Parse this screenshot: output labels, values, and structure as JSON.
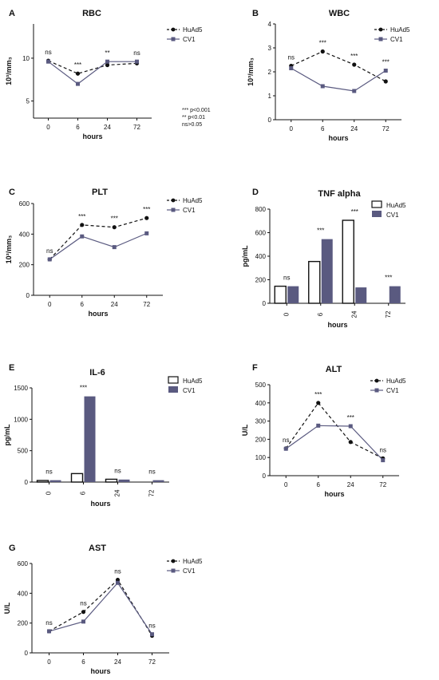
{
  "colors": {
    "huad5": "#111111",
    "cv1": "#5a5a80"
  },
  "sig_notes": [
    "*** p<0.001",
    "**  p<0.01",
    "ns>0.05"
  ],
  "chart_data": [
    {
      "panel": "A",
      "title": "RBC",
      "type": "line",
      "xlabel": "hours",
      "ylabel": "10³/mm₃",
      "categories": [
        "0",
        "6",
        "24",
        "72"
      ],
      "ylim": [
        3,
        14
      ],
      "yticks": [
        5,
        10
      ],
      "series": [
        {
          "name": "HuAd5",
          "values": [
            9.7,
            8.2,
            9.2,
            9.4
          ]
        },
        {
          "name": "CV1",
          "values": [
            9.6,
            7.0,
            9.6,
            9.6
          ]
        }
      ],
      "annotations": [
        "ns",
        "***",
        "**",
        "ns"
      ]
    },
    {
      "panel": "B",
      "title": "WBC",
      "type": "line",
      "xlabel": "hours",
      "ylabel": "10³/mm₃",
      "categories": [
        "0",
        "6",
        "24",
        "72"
      ],
      "ylim": [
        0,
        4
      ],
      "yticks": [
        0,
        1,
        2,
        3,
        4
      ],
      "series": [
        {
          "name": "HuAd5",
          "values": [
            2.25,
            2.85,
            2.3,
            1.6
          ]
        },
        {
          "name": "CV1",
          "values": [
            2.15,
            1.4,
            1.2,
            2.05
          ]
        }
      ],
      "annotations": [
        "ns",
        "***",
        "***",
        "***"
      ]
    },
    {
      "panel": "C",
      "title": "PLT",
      "type": "line",
      "xlabel": "hours",
      "ylabel": "10³/mm₃",
      "categories": [
        "0",
        "6",
        "24",
        "72"
      ],
      "ylim": [
        0,
        600
      ],
      "yticks": [
        0,
        200,
        400,
        600
      ],
      "series": [
        {
          "name": "HuAd5",
          "values": [
            235,
            460,
            445,
            505
          ]
        },
        {
          "name": "CV1",
          "values": [
            235,
            385,
            315,
            405
          ]
        }
      ],
      "annotations": [
        "ns",
        "***",
        "***",
        "***"
      ]
    },
    {
      "panel": "D",
      "title": "TNF alpha",
      "type": "bar",
      "xlabel": "hours",
      "ylabel": "pg/mL",
      "categories": [
        "0",
        "6",
        "24",
        "72"
      ],
      "ylim": [
        0,
        800
      ],
      "yticks": [
        0,
        200,
        400,
        600,
        800
      ],
      "series": [
        {
          "name": "HuAd5",
          "values": [
            145,
            355,
            705,
            0
          ]
        },
        {
          "name": "CV1",
          "values": [
            145,
            545,
            135,
            145
          ]
        }
      ],
      "annotations": [
        "ns",
        "***",
        "***",
        "***"
      ]
    },
    {
      "panel": "E",
      "title": "IL-6",
      "type": "bar",
      "xlabel": "hours",
      "ylabel": "pg/mL",
      "categories": [
        "0",
        "6",
        "24",
        "72"
      ],
      "ylim": [
        0,
        1500
      ],
      "yticks": [
        0,
        500,
        1000,
        1500
      ],
      "series": [
        {
          "name": "HuAd5",
          "values": [
            25,
            135,
            45,
            0
          ]
        },
        {
          "name": "CV1",
          "values": [
            30,
            1365,
            40,
            30
          ]
        }
      ],
      "annotations": [
        "ns",
        "***",
        "ns",
        "ns"
      ]
    },
    {
      "panel": "F",
      "title": "ALT",
      "type": "line",
      "xlabel": "hours",
      "ylabel": "U/L",
      "categories": [
        "0",
        "6",
        "24",
        "72"
      ],
      "ylim": [
        0,
        500
      ],
      "yticks": [
        0,
        100,
        200,
        300,
        400,
        500
      ],
      "series": [
        {
          "name": "HuAd5",
          "values": [
            150,
            400,
            185,
            95
          ]
        },
        {
          "name": "CV1",
          "values": [
            148,
            275,
            272,
            85
          ]
        }
      ],
      "annotations": [
        "ns",
        "***",
        "***",
        "ns"
      ]
    },
    {
      "panel": "G",
      "title": "AST",
      "type": "line",
      "xlabel": "hours",
      "ylabel": "U/L",
      "categories": [
        "0",
        "6",
        "24",
        "72"
      ],
      "ylim": [
        0,
        600
      ],
      "yticks": [
        0,
        200,
        400,
        600
      ],
      "series": [
        {
          "name": "HuAd5",
          "values": [
            145,
            275,
            490,
            115
          ]
        },
        {
          "name": "CV1",
          "values": [
            145,
            210,
            470,
            125
          ]
        }
      ],
      "annotations": [
        "ns",
        "ns",
        "ns",
        "ns"
      ]
    }
  ]
}
